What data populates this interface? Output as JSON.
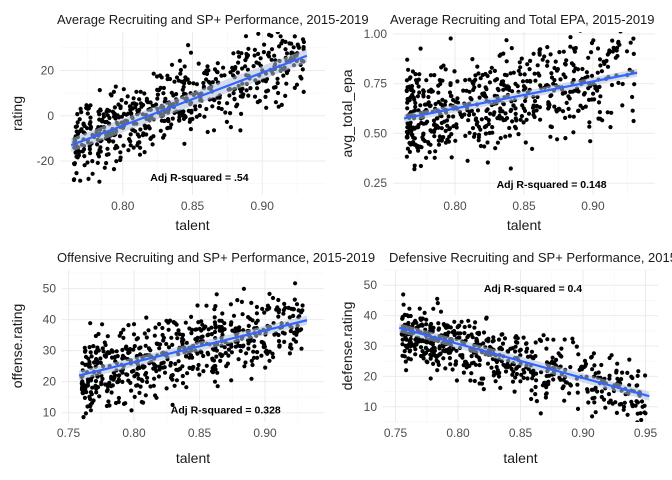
{
  "figure": {
    "background": "#ffffff",
    "fit_line_color": "#3366ff",
    "ci_band_color": "#b3bfd9"
  },
  "chart_data": [
    {
      "type": "scatter",
      "title": "Average Recruiting and SP+ Performance, 2015-2019",
      "xlabel": "talent",
      "ylabel": "rating",
      "xlim": [
        0.755,
        0.945
      ],
      "ylim": [
        -35,
        37
      ],
      "xticks": [
        0.8,
        0.85,
        0.9
      ],
      "xtick_labels": [
        "0.80",
        "0.85",
        "0.90"
      ],
      "yticks": [
        -20,
        0,
        20
      ],
      "ytick_labels": [
        "-20",
        "0",
        "20"
      ],
      "grid": true,
      "annotation": {
        "text": "Adj R-squared = .54",
        "x": 0.855,
        "y": -27
      },
      "fit": {
        "x": [
          0.763,
          0.932
        ],
        "y": [
          -13,
          26.5
        ],
        "ci": 3
      },
      "point_count": 600,
      "point_trend": {
        "x_range": [
          0.765,
          0.93
        ],
        "y_at_xmin": -12,
        "y_at_xmax": 26,
        "spread_sd": 9.5,
        "seed": 11
      }
    },
    {
      "type": "scatter",
      "title": "Average Recruiting and Total EPA, 2015-2019",
      "xlabel": "talent",
      "ylabel": "avg_total_epa",
      "xlim": [
        0.755,
        0.945
      ],
      "ylim": [
        0.19,
        1.01
      ],
      "xticks": [
        0.8,
        0.85,
        0.9
      ],
      "xtick_labels": [
        "0.80",
        "0.85",
        "0.90"
      ],
      "yticks": [
        0.25,
        0.5,
        0.75,
        1.0
      ],
      "ytick_labels": [
        "0.25",
        "0.50",
        "0.75",
        "1.00"
      ],
      "grid": true,
      "annotation": {
        "text": "Adj R-squared = 0.148",
        "x": 0.87,
        "y": 0.245
      },
      "fit": {
        "x": [
          0.763,
          0.932
        ],
        "y": [
          0.575,
          0.805
        ],
        "ci": 0.02
      },
      "point_count": 600,
      "point_trend": {
        "x_range": [
          0.765,
          0.93
        ],
        "y_at_xmin": 0.58,
        "y_at_xmax": 0.8,
        "spread_sd": 0.14,
        "seed": 23
      }
    },
    {
      "type": "scatter",
      "title": "Offensive Recruiting and SP+ Performance, 2015-2019",
      "xlabel": "talent",
      "ylabel": "offense.rating",
      "xlim": [
        0.745,
        0.945
      ],
      "ylim": [
        7,
        56
      ],
      "xticks": [
        0.75,
        0.8,
        0.85,
        0.9
      ],
      "xtick_labels": [
        "0.75",
        "0.80",
        "0.85",
        "0.90"
      ],
      "yticks": [
        10,
        20,
        30,
        40,
        50
      ],
      "ytick_labels": [
        "10",
        "20",
        "30",
        "40",
        "50"
      ],
      "grid": true,
      "annotation": {
        "text": "Adj R-squared = 0.328",
        "x": 0.87,
        "y": 11
      },
      "fit": {
        "x": [
          0.758,
          0.932
        ],
        "y": [
          22,
          39.8
        ],
        "ci": 1.5
      },
      "point_count": 600,
      "point_trend": {
        "x_range": [
          0.76,
          0.93
        ],
        "y_at_xmin": 22,
        "y_at_xmax": 40,
        "spread_sd": 7,
        "seed": 37
      }
    },
    {
      "type": "scatter",
      "title": "Defensive Recruiting and SP+ Performance, 2015",
      "xlabel": "talent",
      "ylabel": "defense.rating",
      "xlim": [
        0.74,
        0.96
      ],
      "ylim": [
        5,
        55
      ],
      "xticks": [
        0.75,
        0.8,
        0.85,
        0.9,
        0.95
      ],
      "xtick_labels": [
        "0.75",
        "0.80",
        "0.85",
        "0.90",
        "0.95"
      ],
      "yticks": [
        10,
        20,
        30,
        40,
        50
      ],
      "ytick_labels": [
        "10",
        "20",
        "30",
        "40",
        "50"
      ],
      "grid": true,
      "annotation": {
        "text": "Adj R-squared = 0.4",
        "x": 0.86,
        "y": 49
      },
      "fit": {
        "x": [
          0.753,
          0.953
        ],
        "y": [
          36,
          13.5
        ],
        "ci": 1.5
      },
      "point_count": 600,
      "point_trend": {
        "x_range": [
          0.755,
          0.95
        ],
        "y_at_xmin": 35,
        "y_at_xmax": 14,
        "spread_sd": 6,
        "seed": 53
      }
    }
  ]
}
